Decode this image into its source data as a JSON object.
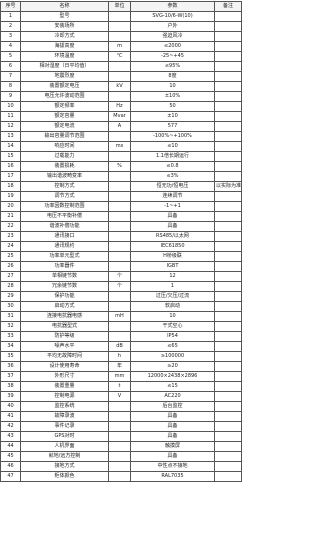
{
  "table": {
    "header": [
      "序号",
      "名称",
      "单位",
      "参数",
      "备注"
    ],
    "rows": [
      [
        "1",
        "型号",
        null,
        "SVG-10/6-W(10)",
        null
      ],
      [
        "2",
        "安装场所",
        null,
        "户外",
        null
      ],
      [
        "3",
        "冷却方式",
        null,
        "强迫风冷",
        null
      ],
      [
        "4",
        "海拔高度",
        "m",
        "≤2000",
        null
      ],
      [
        "5",
        "环境温度",
        "℃",
        "-25~+45",
        null
      ],
      [
        "6",
        "相对湿度（日平均值）",
        null,
        "≤95%",
        null
      ],
      [
        "7",
        "地震烈度",
        null,
        "8度",
        null
      ],
      [
        "8",
        "装置额定电压",
        "kV",
        "10",
        null
      ],
      [
        "9",
        "电压允许波动范围",
        null,
        "±10%",
        null
      ],
      [
        "10",
        "额定频率",
        "Hz",
        "50",
        null
      ],
      [
        "11",
        "额定容量",
        "Mvar",
        "±10",
        null
      ],
      [
        "12",
        "额定电流",
        "A",
        "577",
        null
      ],
      [
        "13",
        "输出容量调节范围",
        null,
        "-100%~+100%",
        null
      ],
      [
        "14",
        "响应时间",
        "ms",
        "≤10",
        null
      ],
      [
        "15",
        "过载能力",
        null,
        "1.1倍长期运行",
        null
      ],
      [
        "16",
        "装置损耗",
        "%",
        "≤0.8",
        null
      ],
      [
        "17",
        "输出谐波畸变率",
        null,
        "≤3%",
        null
      ],
      [
        "18",
        "控制方式",
        null,
        "恒无功/恒电压",
        "以实际为准"
      ],
      [
        "19",
        "调节方式",
        null,
        "连续调节",
        null
      ],
      [
        "20",
        "功率因数控制范围",
        null,
        "-1~+1",
        null
      ],
      [
        "21",
        "电压不平衡补偿",
        null,
        "具备",
        null
      ],
      [
        "22",
        "谐波补偿功能",
        null,
        "具备",
        null
      ],
      [
        "23",
        "通讯接口",
        null,
        "RS485/以太网",
        null
      ],
      [
        "24",
        "通讯规约",
        null,
        "IEC61850",
        null
      ],
      [
        "25",
        "功率单元型式",
        null,
        "H桥级联",
        null
      ],
      [
        "26",
        "功率器件",
        null,
        "IGBT",
        null
      ],
      [
        "27",
        "单相链节数",
        "个",
        "12",
        null
      ],
      [
        "28",
        "冗余链节数",
        "个",
        "1",
        null
      ],
      [
        "29",
        "保护功能",
        null,
        "过压/欠压/过流",
        null
      ],
      [
        "30",
        "启动方式",
        null,
        "软启动",
        null
      ],
      [
        "31",
        "连接电抗器电感",
        "mH",
        "10",
        null
      ],
      [
        "32",
        "电抗器型式",
        null,
        "干式空心",
        null
      ],
      [
        "33",
        "防护等级",
        null,
        "IP54",
        null
      ],
      [
        "34",
        "噪声水平",
        "dB",
        "≤65",
        null
      ],
      [
        "35",
        "平均无故障时间",
        "h",
        "≥100000",
        null
      ],
      [
        "36",
        "设计使用寿命",
        "年",
        "≥20",
        null
      ],
      [
        "37",
        "外形尺寸",
        "mm",
        "12000×2438×2896",
        null
      ],
      [
        "38",
        "装置重量",
        "t",
        "≤15",
        null
      ],
      [
        "39",
        "控制电源",
        "V",
        "AC220",
        null
      ],
      [
        "40",
        "监控系统",
        null,
        "后台监控",
        null
      ],
      [
        "41",
        "故障录波",
        null,
        "具备",
        null
      ],
      [
        "42",
        "事件记录",
        null,
        "具备",
        null
      ],
      [
        "43",
        "GPS对时",
        null,
        "具备",
        null
      ],
      [
        "44",
        "人机界面",
        null,
        "触摸屏",
        null
      ],
      [
        "45",
        "就地/远方控制",
        null,
        "具备",
        null
      ],
      [
        "46",
        "接地方式",
        null,
        "中性点不接地",
        null
      ],
      [
        "47",
        "柜体颜色",
        null,
        "RAL7035",
        null
      ]
    ]
  }
}
